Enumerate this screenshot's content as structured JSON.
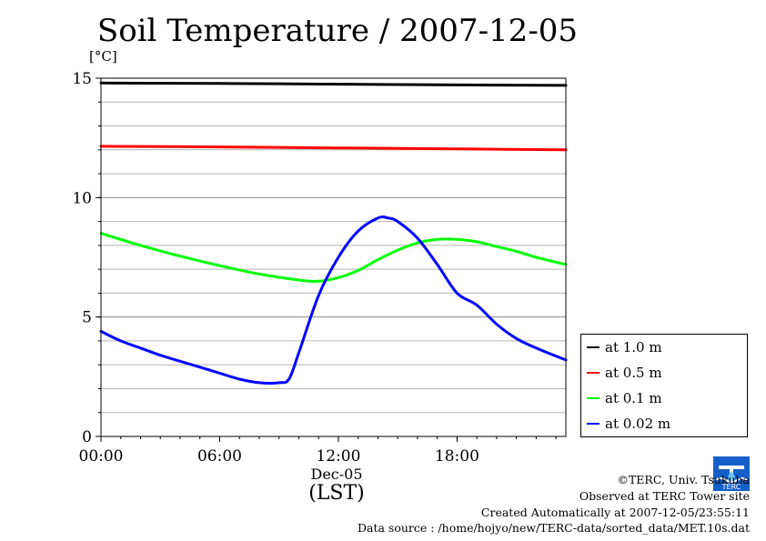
{
  "title": "Soil Temperature / 2007-12-05",
  "y_unit": "[°C]",
  "x_sublabel": "Dec-05",
  "x_label": "(LST)",
  "credits": {
    "copyright": "©TERC, Univ. Tsukuba",
    "observed": "Observed at TERC Tower site",
    "created": "Created Automatically at 2007-12-05/23:55:11",
    "source": "Data source : /home/hojyo/new/TERC-data/sorted_data/MET.10s.dat"
  },
  "logo_text": "TERC",
  "chart_data": {
    "type": "line",
    "title": "Soil Temperature / 2007-12-05",
    "ylabel": "[°C]",
    "xlabel": "(LST)",
    "xlim": [
      0,
      23.5
    ],
    "ylim": [
      0,
      15
    ],
    "x_ticks": [
      {
        "value": 0,
        "label": "00:00"
      },
      {
        "value": 6,
        "label": "06:00"
      },
      {
        "value": 12,
        "label": "12:00"
      },
      {
        "value": 18,
        "label": "18:00"
      }
    ],
    "y_ticks": [
      {
        "value": 0,
        "label": "0"
      },
      {
        "value": 5,
        "label": "5"
      },
      {
        "value": 10,
        "label": "10"
      },
      {
        "value": 15,
        "label": "15"
      }
    ],
    "grid": true,
    "legend_position": "right",
    "series": [
      {
        "name": "at 1.0 m",
        "color": "#000000",
        "points": [
          [
            0,
            14.8
          ],
          [
            6,
            14.78
          ],
          [
            12,
            14.75
          ],
          [
            18,
            14.72
          ],
          [
            23.5,
            14.7
          ]
        ]
      },
      {
        "name": "at 0.5 m",
        "color": "#ff0000",
        "points": [
          [
            0,
            12.15
          ],
          [
            6,
            12.12
          ],
          [
            12,
            12.08
          ],
          [
            18,
            12.04
          ],
          [
            23.5,
            12.0
          ]
        ]
      },
      {
        "name": "at 0.1 m",
        "color": "#00ff00",
        "points": [
          [
            0,
            8.5
          ],
          [
            2,
            8.0
          ],
          [
            4,
            7.55
          ],
          [
            6,
            7.15
          ],
          [
            8,
            6.8
          ],
          [
            10,
            6.55
          ],
          [
            11,
            6.5
          ],
          [
            12,
            6.65
          ],
          [
            13,
            6.95
          ],
          [
            14,
            7.4
          ],
          [
            15,
            7.8
          ],
          [
            16,
            8.1
          ],
          [
            17,
            8.25
          ],
          [
            18,
            8.25
          ],
          [
            19,
            8.15
          ],
          [
            20,
            7.95
          ],
          [
            21,
            7.75
          ],
          [
            22,
            7.5
          ],
          [
            23.5,
            7.2
          ]
        ]
      },
      {
        "name": "at 0.02 m",
        "color": "#0000ff",
        "points": [
          [
            0,
            4.4
          ],
          [
            1,
            4.0
          ],
          [
            2,
            3.7
          ],
          [
            3,
            3.4
          ],
          [
            4,
            3.15
          ],
          [
            5,
            2.9
          ],
          [
            6,
            2.65
          ],
          [
            7,
            2.4
          ],
          [
            8,
            2.25
          ],
          [
            9,
            2.25
          ],
          [
            9.5,
            2.4
          ],
          [
            10,
            3.5
          ],
          [
            11,
            5.9
          ],
          [
            12,
            7.5
          ],
          [
            13,
            8.6
          ],
          [
            14,
            9.15
          ],
          [
            14.5,
            9.15
          ],
          [
            15,
            9.0
          ],
          [
            16,
            8.3
          ],
          [
            17,
            7.2
          ],
          [
            18,
            6.0
          ],
          [
            19,
            5.5
          ],
          [
            20,
            4.7
          ],
          [
            21,
            4.1
          ],
          [
            22,
            3.7
          ],
          [
            23.5,
            3.2
          ]
        ]
      }
    ]
  }
}
